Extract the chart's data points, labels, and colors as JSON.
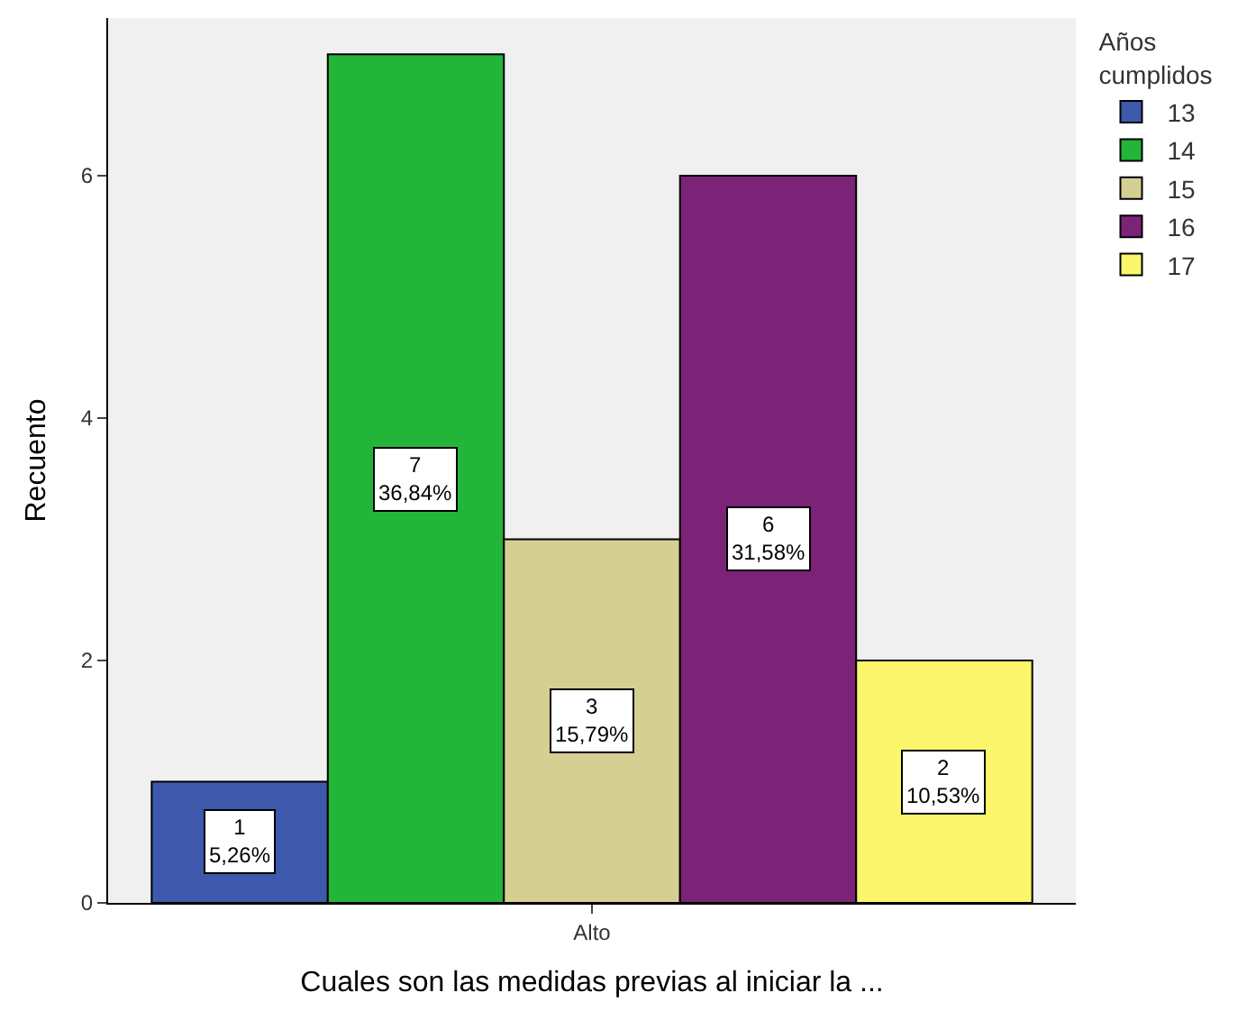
{
  "chart_data": {
    "type": "bar",
    "xlabel": "Cuales son las medidas previas al iniciar la ...",
    "ylabel": "Recuento",
    "legend_title": "Años cumplidos",
    "categories": [
      "Alto"
    ],
    "series": [
      {
        "name": "13",
        "color": "#3e58ac",
        "values": [
          1
        ],
        "value_labels": [
          "1\n5,26%"
        ]
      },
      {
        "name": "14",
        "color": "#23b53a",
        "values": [
          7
        ],
        "value_labels": [
          "7\n36,84%"
        ]
      },
      {
        "name": "15",
        "color": "#d6cf94",
        "values": [
          3
        ],
        "value_labels": [
          "3\n15,79%"
        ]
      },
      {
        "name": "16",
        "color": "#7b2376",
        "values": [
          6
        ],
        "value_labels": [
          "6\n31,58%"
        ]
      },
      {
        "name": "17",
        "color": "#fbf66c",
        "values": [
          2
        ],
        "value_labels": [
          "2\n10,53%"
        ]
      }
    ],
    "ylim": [
      0,
      7.3
    ],
    "yticks": [
      0,
      2,
      4,
      6
    ],
    "grid": false,
    "legend": "top right"
  }
}
